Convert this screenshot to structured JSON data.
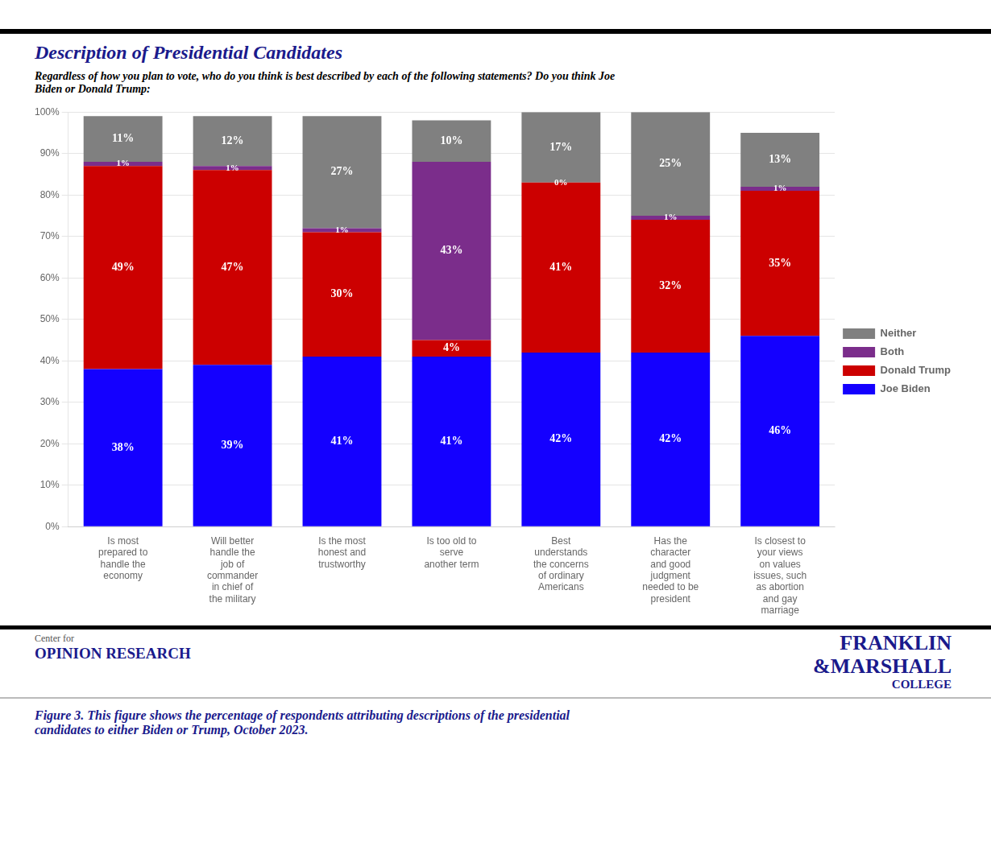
{
  "chart_data": {
    "type": "bar",
    "title": "Description of Presidential Candidates",
    "subtitle": "Regardless of how you plan to vote, who do you think is best described by each of the following statements? Do you think Joe\nBiden or Donald Trump:",
    "categories": [
      "Is most\nprepared to\nhandle the\neconomy",
      "Will better\nhandle the\njob of\ncommander\nin chief of\nthe military",
      "Is the most\nhonest and\ntrustworthy",
      "Is too old to\nserve\nanother term",
      "Best\nunderstands\nthe concerns\nof ordinary\nAmericans",
      "Has the\ncharacter\nand good\njudgment\nneeded to be\npresident",
      "Is closest to\nyour views\non values\nissues, such\nas abortion\nand gay\nmarriage"
    ],
    "series": [
      {
        "name": "Joe Biden",
        "color": "#1400FF",
        "values": [
          38,
          39,
          41,
          41,
          42,
          42,
          46
        ],
        "value_labels": [
          "38%",
          "39%",
          "41%",
          "41%",
          "42%",
          "42%",
          "46%"
        ]
      },
      {
        "name": "Donald Trump",
        "color": "#CC0000",
        "values": [
          49,
          47,
          30,
          4,
          41,
          32,
          35
        ],
        "value_labels": [
          "49%",
          "47%",
          "30%",
          "4%",
          "41%",
          "32%",
          "35%"
        ]
      },
      {
        "name": "Both",
        "color": "#7B2D8B",
        "values": [
          1,
          1,
          1,
          43,
          0,
          1,
          1
        ],
        "value_labels": [
          "1%",
          "1%",
          "1%",
          "43%",
          "0%",
          "1%",
          "1%"
        ]
      },
      {
        "name": "Neither",
        "color": "#808080",
        "values": [
          11,
          12,
          27,
          10,
          17,
          25,
          13
        ],
        "value_labels": [
          "11%",
          "12%",
          "27%",
          "10%",
          "17%",
          "25%",
          "13%"
        ]
      }
    ],
    "stacked": true,
    "data_labels": true,
    "ylim": [
      0,
      100
    ],
    "yticks": [
      {
        "value": 0,
        "label": "0%"
      },
      {
        "value": 10,
        "label": "10%"
      },
      {
        "value": 20,
        "label": "20%"
      },
      {
        "value": 30,
        "label": "30%"
      },
      {
        "value": 40,
        "label": "40%"
      },
      {
        "value": 50,
        "label": "50%"
      },
      {
        "value": 60,
        "label": "60%"
      },
      {
        "value": 70,
        "label": "70%"
      },
      {
        "value": 80,
        "label": "80%"
      },
      {
        "value": 90,
        "label": "90%"
      },
      {
        "value": 100,
        "label": "100%"
      }
    ],
    "grid": true,
    "legend": "right",
    "annotations": [
      "Center for",
      "OPINION RESEARCH",
      "FRANKLIN",
      "&MARSHALL",
      "COLLEGE",
      "Figure 3. This figure shows the percentage of respondents attributing descriptions of the presidential\ncandidates to either Biden or Trump, October 2023."
    ]
  }
}
